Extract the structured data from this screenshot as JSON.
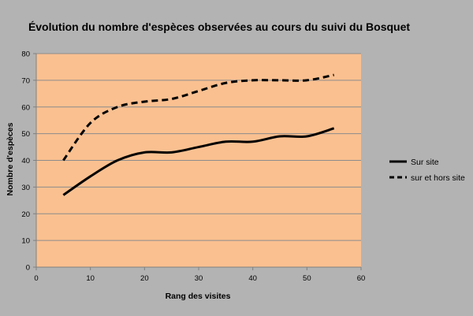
{
  "chart_data": {
    "type": "line",
    "title": "Évolution du nombre d'espèces observées au cours du suivi du Bosquet",
    "xlabel": "Rang des visites",
    "ylabel": "Nombre d'espèces",
    "xlim": [
      0,
      60
    ],
    "ylim": [
      0,
      80
    ],
    "xticks": [
      0,
      10,
      20,
      30,
      40,
      50,
      60
    ],
    "yticks": [
      0,
      10,
      20,
      30,
      40,
      50,
      60,
      70,
      80
    ],
    "grid": "horizontal",
    "legend_position": "right",
    "plot_background": "#fac090",
    "page_background": "#b3b3b3",
    "series": [
      {
        "name": "Sur site",
        "style": "solid",
        "color": "#000000",
        "x": [
          5,
          10,
          15,
          20,
          25,
          30,
          35,
          40,
          45,
          50,
          55
        ],
        "y": [
          27,
          34,
          40,
          43,
          43,
          45,
          47,
          47,
          49,
          49,
          52
        ]
      },
      {
        "name": "sur et hors site",
        "style": "dashed",
        "color": "#000000",
        "x": [
          5,
          10,
          15,
          20,
          25,
          30,
          35,
          40,
          45,
          50,
          55
        ],
        "y": [
          40,
          54,
          60,
          62,
          63,
          66,
          69,
          70,
          70,
          70,
          72
        ]
      }
    ]
  }
}
